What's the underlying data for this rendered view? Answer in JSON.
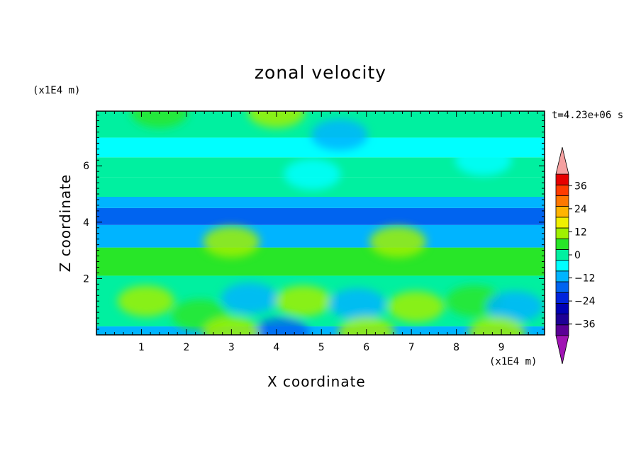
{
  "chart_data": {
    "type": "heatmap",
    "title": "zonal velocity",
    "xlabel": "X coordinate",
    "ylabel": "Z coordinate",
    "x_unit": "(x1E4 m)",
    "y_unit": "(x1E4 m)",
    "time_label": "t=4.23e+06 s",
    "xlim": [
      0,
      9.96
    ],
    "ylim": [
      0,
      7.94
    ],
    "x_ticks": [
      1,
      2,
      3,
      4,
      5,
      6,
      7,
      8,
      9
    ],
    "y_ticks": [
      2,
      4,
      6
    ],
    "colorbar": {
      "levels": [
        -42,
        -36,
        -30,
        -24,
        -18,
        -12,
        -6,
        0,
        6,
        12,
        18,
        24,
        30,
        36,
        42
      ],
      "tick_labels": [
        "36",
        "24",
        "12",
        "0",
        "−12",
        "−24",
        "−36"
      ],
      "tick_values": [
        36,
        24,
        12,
        0,
        -12,
        -24,
        -36
      ],
      "colors": [
        "#5a0096",
        "#1e0096",
        "#0000b4",
        "#0024dc",
        "#0064f0",
        "#00b4ff",
        "#00ffff",
        "#00f0a0",
        "#28e628",
        "#a0f000",
        "#f0f000",
        "#ffb400",
        "#ff7800",
        "#ff3c00",
        "#e60000"
      ],
      "under_color": "#a014b4",
      "over_color": "#f5a0a0"
    },
    "bands": [
      {
        "z": [
          0.0,
          0.3
        ],
        "value": -8
      },
      {
        "z": [
          0.3,
          2.1
        ],
        "value": 3
      },
      {
        "z": [
          2.1,
          3.1
        ],
        "value": 6
      },
      {
        "z": [
          3.1,
          3.9
        ],
        "value": -10
      },
      {
        "z": [
          3.9,
          4.5
        ],
        "value": -17
      },
      {
        "z": [
          4.5,
          4.9
        ],
        "value": -8
      },
      {
        "z": [
          4.9,
          5.6
        ],
        "value": 0
      },
      {
        "z": [
          5.6,
          6.3
        ],
        "value": 2
      },
      {
        "z": [
          6.3,
          7.0
        ],
        "value": -4
      },
      {
        "z": [
          7.0,
          7.94
        ],
        "value": 3
      }
    ],
    "features": [
      {
        "x": 1.1,
        "z": 1.2,
        "value": 12
      },
      {
        "x": 2.3,
        "z": 0.7,
        "value": 6
      },
      {
        "x": 3.4,
        "z": 1.3,
        "value": -10
      },
      {
        "x": 4.6,
        "z": 1.2,
        "value": 12
      },
      {
        "x": 5.8,
        "z": 1.1,
        "value": -12
      },
      {
        "x": 7.1,
        "z": 1.0,
        "value": 12
      },
      {
        "x": 8.4,
        "z": 1.2,
        "value": 6
      },
      {
        "x": 9.3,
        "z": 1.0,
        "value": -10
      },
      {
        "x": 4.1,
        "z": 0.05,
        "value": -18
      },
      {
        "x": 6.0,
        "z": 0.1,
        "value": 12
      },
      {
        "x": 3.0,
        "z": 0.1,
        "value": 12
      },
      {
        "x": 8.9,
        "z": 0.1,
        "value": 12
      },
      {
        "x": 4.0,
        "z": 7.9,
        "value": 12
      },
      {
        "x": 1.4,
        "z": 7.9,
        "value": 6
      },
      {
        "x": 5.4,
        "z": 7.1,
        "value": -8
      },
      {
        "x": 8.6,
        "z": 6.2,
        "value": -6
      },
      {
        "x": 4.8,
        "z": 5.7,
        "value": -4
      },
      {
        "x": 3.0,
        "z": 3.3,
        "value": 12
      },
      {
        "x": 6.7,
        "z": 3.3,
        "value": 12
      }
    ]
  }
}
